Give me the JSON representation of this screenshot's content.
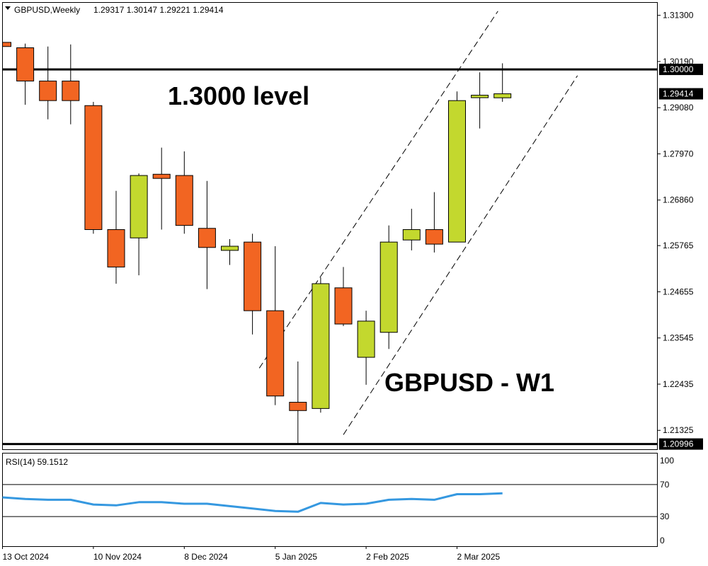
{
  "chart_data": [
    {
      "type": "candlestick",
      "symbol": "GBPUSD",
      "timeframe": "Weekly",
      "header": {
        "symbol_timeframe": "GBPUSD,Weekly",
        "ohlc": "1.29317 1.30147 1.29221 1.29414"
      },
      "annotations": [
        "1.3000 level",
        "GBPUSD - W1"
      ],
      "y_ticks": [
        "1.31300",
        "1.30190",
        "1.29080",
        "1.27970",
        "1.26860",
        "1.25765",
        "1.24655",
        "1.23545",
        "1.22435",
        "1.21325"
      ],
      "ylim": [
        1.2087,
        1.316
      ],
      "price_labels": [
        {
          "value": 1.3,
          "text": "1.30000",
          "style": "dark"
        },
        {
          "value": 1.29414,
          "text": "1.29414",
          "style": "dark"
        },
        {
          "value": 1.20996,
          "text": "1.20996",
          "style": "dark"
        }
      ],
      "horizontal_lines": [
        1.3,
        1.20996
      ],
      "x_labels": [
        {
          "index": 0,
          "text": "13 Oct 2024"
        },
        {
          "index": 4,
          "text": "10 Nov 2024"
        },
        {
          "index": 8,
          "text": "8 Dec 2024"
        },
        {
          "index": 12,
          "text": "5 Jan 2025"
        },
        {
          "index": 16,
          "text": "2 Feb 2025"
        },
        {
          "index": 20,
          "text": "2 Mar 2025"
        }
      ],
      "colors": {
        "up": "#c3d82e",
        "down": "#f26522",
        "rsi_line": "#3598e0"
      },
      "candles": [
        {
          "o": 1.3065,
          "h": 1.312,
          "l": 1.306,
          "c": 1.3055
        },
        {
          "o": 1.3052,
          "h": 1.3062,
          "l": 1.2915,
          "c": 1.2972
        },
        {
          "o": 1.2972,
          "h": 1.3055,
          "l": 1.288,
          "c": 1.2925
        },
        {
          "o": 1.2972,
          "h": 1.306,
          "l": 1.2868,
          "c": 1.2925
        },
        {
          "o": 1.2913,
          "h": 1.2922,
          "l": 1.2605,
          "c": 1.2615
        },
        {
          "o": 1.2615,
          "h": 1.2708,
          "l": 1.2485,
          "c": 1.2525
        },
        {
          "o": 1.2595,
          "h": 1.275,
          "l": 1.2505,
          "c": 1.2745
        },
        {
          "o": 1.2748,
          "h": 1.2812,
          "l": 1.2615,
          "c": 1.2738
        },
        {
          "o": 1.2745,
          "h": 1.2803,
          "l": 1.2605,
          "c": 1.2625
        },
        {
          "o": 1.2618,
          "h": 1.2732,
          "l": 1.2472,
          "c": 1.2572
        },
        {
          "o": 1.2565,
          "h": 1.2592,
          "l": 1.253,
          "c": 1.2575
        },
        {
          "o": 1.2585,
          "h": 1.2605,
          "l": 1.2363,
          "c": 1.242
        },
        {
          "o": 1.242,
          "h": 1.2575,
          "l": 1.2193,
          "c": 1.2215
        },
        {
          "o": 1.22,
          "h": 1.2298,
          "l": 1.21,
          "c": 1.218
        },
        {
          "o": 1.2185,
          "h": 1.25,
          "l": 1.2175,
          "c": 1.2485
        },
        {
          "o": 1.2475,
          "h": 1.2525,
          "l": 1.2383,
          "c": 1.2388
        },
        {
          "o": 1.2308,
          "h": 1.242,
          "l": 1.2242,
          "c": 1.2395
        },
        {
          "o": 1.2368,
          "h": 1.2625,
          "l": 1.2328,
          "c": 1.2585
        },
        {
          "o": 1.259,
          "h": 1.2665,
          "l": 1.2565,
          "c": 1.2615
        },
        {
          "o": 1.2615,
          "h": 1.2705,
          "l": 1.256,
          "c": 1.258
        },
        {
          "o": 1.2585,
          "h": 1.2947,
          "l": 1.2585,
          "c": 1.2925
        },
        {
          "o": 1.2932,
          "h": 1.2993,
          "l": 1.2858,
          "c": 1.2938
        },
        {
          "o": 1.29317,
          "h": 1.30147,
          "l": 1.29221,
          "c": 1.29414
        }
      ],
      "channel": {
        "upper": [
          {
            "i": 11.3,
            "p": 1.2282
          },
          {
            "i": 21.8,
            "p": 1.314
          }
        ],
        "lower": [
          {
            "i": 15.0,
            "p": 1.2122
          },
          {
            "i": 25.3,
            "p": 1.2985
          }
        ]
      }
    },
    {
      "type": "line",
      "name": "RSI(14)",
      "label": "RSI(14) 59.1512",
      "ylim": [
        0,
        100
      ],
      "y_ticks": [
        100,
        70,
        30,
        0
      ],
      "levels": [
        70,
        30
      ],
      "values": [
        54,
        52,
        51,
        51,
        45,
        44,
        48,
        48,
        46,
        46,
        43,
        40,
        37,
        36,
        47,
        45,
        46,
        51,
        52,
        51,
        58,
        58,
        59.15
      ]
    }
  ]
}
